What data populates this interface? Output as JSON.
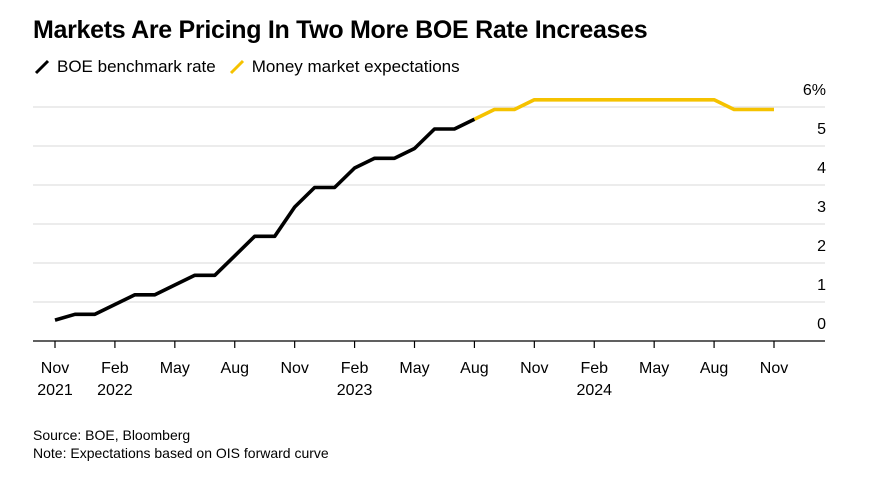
{
  "chart_data": {
    "type": "line",
    "title": "Markets Are Pricing In Two More BOE Rate Increases",
    "xlabel": "",
    "ylabel": "",
    "ylim": [
      0,
      6
    ],
    "y_ticks": [
      "0",
      "1",
      "2",
      "3",
      "4",
      "5",
      "6%"
    ],
    "y_tick_values": [
      0,
      1,
      2,
      3,
      4,
      5,
      6
    ],
    "x_ticks": [
      {
        "month": "Nov",
        "year": "2021",
        "date": "2021-11"
      },
      {
        "month": "Feb",
        "year": "2022",
        "date": "2022-02"
      },
      {
        "month": "May",
        "year": "",
        "date": "2022-05"
      },
      {
        "month": "Aug",
        "year": "",
        "date": "2022-08"
      },
      {
        "month": "Nov",
        "year": "",
        "date": "2022-11"
      },
      {
        "month": "Feb",
        "year": "2023",
        "date": "2023-02"
      },
      {
        "month": "May",
        "year": "",
        "date": "2023-05"
      },
      {
        "month": "Aug",
        "year": "",
        "date": "2023-08"
      },
      {
        "month": "Nov",
        "year": "",
        "date": "2023-11"
      },
      {
        "month": "Feb",
        "year": "2024",
        "date": "2024-02"
      },
      {
        "month": "May",
        "year": "",
        "date": "2024-05"
      },
      {
        "month": "Aug",
        "year": "",
        "date": "2024-08"
      },
      {
        "month": "Nov",
        "year": "",
        "date": "2024-11"
      }
    ],
    "grid": true,
    "legend_position": "top-left",
    "series": [
      {
        "name": "BOE benchmark rate",
        "color": "#000000",
        "points": [
          {
            "x": "2021-11",
            "y": 0.1
          },
          {
            "x": "2021-12",
            "y": 0.25
          },
          {
            "x": "2022-01",
            "y": 0.25
          },
          {
            "x": "2022-02",
            "y": 0.5
          },
          {
            "x": "2022-03",
            "y": 0.75
          },
          {
            "x": "2022-04",
            "y": 0.75
          },
          {
            "x": "2022-05",
            "y": 1.0
          },
          {
            "x": "2022-06",
            "y": 1.25
          },
          {
            "x": "2022-07",
            "y": 1.25
          },
          {
            "x": "2022-08",
            "y": 1.75
          },
          {
            "x": "2022-09",
            "y": 2.25
          },
          {
            "x": "2022-10",
            "y": 2.25
          },
          {
            "x": "2022-11",
            "y": 3.0
          },
          {
            "x": "2022-12",
            "y": 3.5
          },
          {
            "x": "2023-01",
            "y": 3.5
          },
          {
            "x": "2023-02",
            "y": 4.0
          },
          {
            "x": "2023-03",
            "y": 4.25
          },
          {
            "x": "2023-04",
            "y": 4.25
          },
          {
            "x": "2023-05",
            "y": 4.5
          },
          {
            "x": "2023-06",
            "y": 5.0
          },
          {
            "x": "2023-07",
            "y": 5.0
          },
          {
            "x": "2023-08",
            "y": 5.25
          }
        ]
      },
      {
        "name": "Money market expectations",
        "color": "#f5c200",
        "points": [
          {
            "x": "2023-08",
            "y": 5.25
          },
          {
            "x": "2023-09",
            "y": 5.5
          },
          {
            "x": "2023-10",
            "y": 5.5
          },
          {
            "x": "2023-11",
            "y": 5.75
          },
          {
            "x": "2023-12",
            "y": 5.75
          },
          {
            "x": "2024-01",
            "y": 5.75
          },
          {
            "x": "2024-02",
            "y": 5.75
          },
          {
            "x": "2024-03",
            "y": 5.75
          },
          {
            "x": "2024-04",
            "y": 5.75
          },
          {
            "x": "2024-05",
            "y": 5.75
          },
          {
            "x": "2024-06",
            "y": 5.75
          },
          {
            "x": "2024-07",
            "y": 5.75
          },
          {
            "x": "2024-08",
            "y": 5.75
          },
          {
            "x": "2024-09",
            "y": 5.5
          },
          {
            "x": "2024-10",
            "y": 5.5
          },
          {
            "x": "2024-11",
            "y": 5.5
          }
        ]
      }
    ]
  },
  "footer": {
    "source": "Source: BOE, Bloomberg",
    "note": "Note: Expectations based on OIS forward curve"
  }
}
